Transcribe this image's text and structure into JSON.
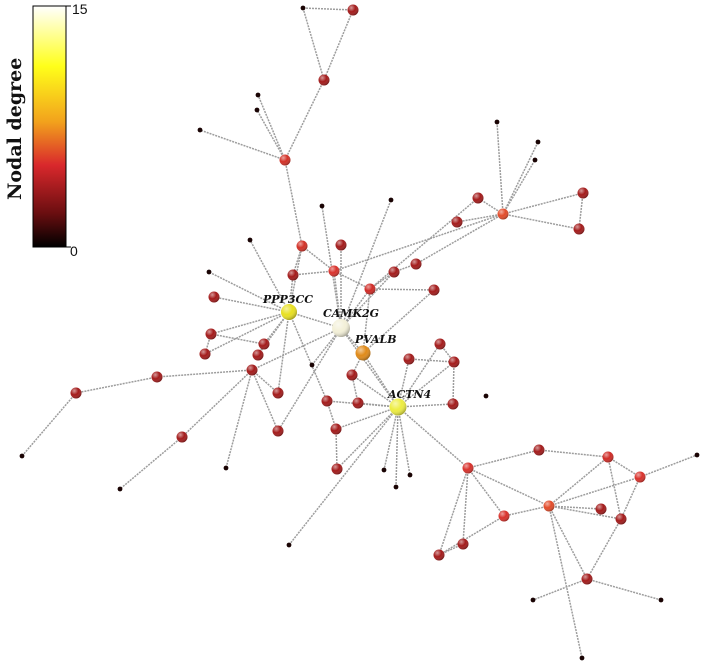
{
  "colorbar": {
    "title": "Nodal degree",
    "max_label": "15",
    "min_label": "0",
    "stops": [
      "#ffffff",
      "#ffff1a",
      "#f2a21c",
      "#d9282c",
      "#6a0e10",
      "#000000"
    ]
  },
  "hubs": [
    {
      "id": "ppp3cc",
      "label": "PPP3CC",
      "color": "#e8e020"
    },
    {
      "id": "camk2g",
      "label": "CAMK2G",
      "color": "#f3f0d8"
    },
    {
      "id": "pvalb",
      "label": "PVALB",
      "color": "#e08a18"
    },
    {
      "id": "actn4",
      "label": "ACTN4",
      "color": "#eded40"
    }
  ]
}
